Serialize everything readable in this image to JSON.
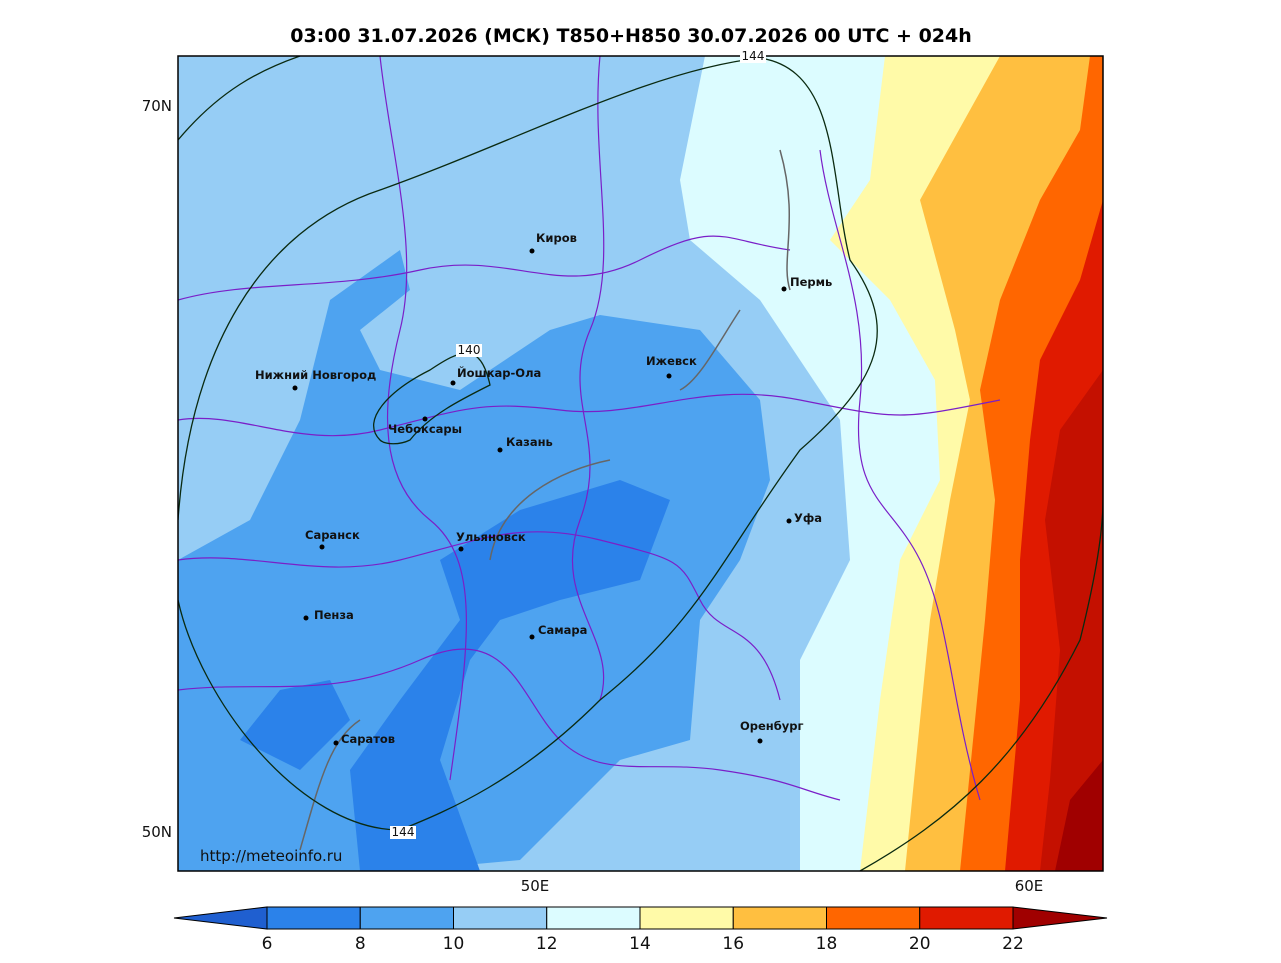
{
  "title": "03:00 31.07.2026 (МСК) T850+H850 30.07.2026 00 UTC + 024h",
  "lat_labels": [
    "70N",
    "50N"
  ],
  "lon_labels": [
    "50E",
    "60E"
  ],
  "cities": [
    "Киров",
    "Пермь",
    "Нижний Новгород",
    "Йошкар-Ола",
    "Ижевск",
    "Чебоксары",
    "Казань",
    "Уфа",
    "Саранск",
    "Ульяновск",
    "Пенза",
    "Самара",
    "Оренбург",
    "Саратов"
  ],
  "contour_labels": [
    "140",
    "144",
    "144"
  ],
  "url": "http://meteoinfo.ru",
  "colorbar": {
    "ticks": [
      6,
      8,
      10,
      12,
      14,
      16,
      18,
      20,
      22
    ],
    "colors": [
      "#1f5fd0",
      "#2b82ea",
      "#4ea3f0",
      "#96cdf5",
      "#dcfcff",
      "#fffaa8",
      "#ffbf40",
      "#ff6600",
      "#e01a00",
      "#a00000"
    ]
  }
}
